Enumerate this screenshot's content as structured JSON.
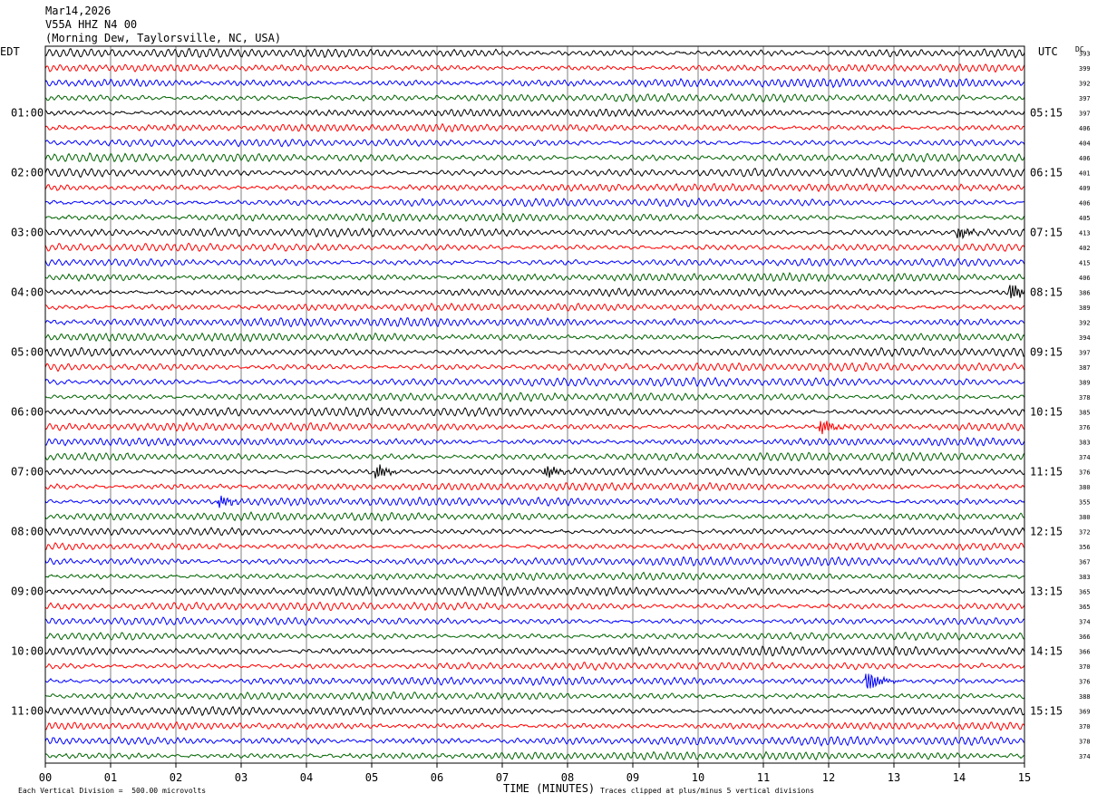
{
  "header": {
    "date": "Mar14,2026",
    "station": "V55A HHZ N4 00",
    "location": "(Morning Dew, Taylorsville, NC, USA)"
  },
  "left_tz": "EDT",
  "right_tz": "UTC",
  "dc_label": "DC",
  "footer": {
    "scale": "Each Vertical Division =  500.00 microvolts",
    "xlabel": "TIME (MINUTES)",
    "clip_note": "Traces clipped at plus/minus 5 vertical divisions"
  },
  "colors": {
    "trace_cycle": [
      "#000000",
      "#ff0000",
      "#0000ff",
      "#006400"
    ],
    "grid": "#000000"
  },
  "chart_data": {
    "type": "line",
    "title": "Mar14,2026  V55A HHZ N4 00  (Morning Dew, Taylorsville, NC, USA)",
    "xlabel": "TIME (MINUTES)",
    "xlim": [
      0,
      15
    ],
    "x_ticks": [
      "00",
      "01",
      "02",
      "03",
      "04",
      "05",
      "06",
      "07",
      "08",
      "09",
      "10",
      "11",
      "12",
      "13",
      "14",
      "15"
    ],
    "rows_per_hour": 4,
    "row_count": 48,
    "left_time_labels": [
      "01:00",
      "02:00",
      "03:00",
      "04:00",
      "05:00",
      "06:00",
      "07:00",
      "08:00",
      "09:00",
      "10:00",
      "11:00"
    ],
    "right_time_labels": [
      "05:15",
      "06:15",
      "07:15",
      "08:15",
      "09:15",
      "10:15",
      "11:15",
      "12:15",
      "13:15",
      "14:15",
      "15:15"
    ],
    "dc_offsets": [
      393,
      399,
      392,
      397,
      397,
      406,
      404,
      406,
      401,
      409,
      406,
      405,
      413,
      402,
      415,
      406,
      386,
      389,
      392,
      394,
      397,
      387,
      389,
      378,
      385,
      376,
      383,
      374,
      376,
      380,
      355,
      380,
      372,
      356,
      367,
      383,
      365,
      365,
      374,
      366,
      366,
      370,
      376,
      388,
      369,
      370,
      378,
      374
    ],
    "events": [
      {
        "row": 28,
        "minute": 5.1,
        "amplitude": 1.6
      },
      {
        "row": 28,
        "minute": 7.7,
        "amplitude": 1.3
      },
      {
        "row": 30,
        "minute": 2.7,
        "amplitude": 1.2
      },
      {
        "row": 42,
        "minute": 12.6,
        "amplitude": 2.6
      },
      {
        "row": 16,
        "minute": 14.8,
        "amplitude": 2.0
      },
      {
        "row": 25,
        "minute": 11.9,
        "amplitude": 1.7
      },
      {
        "row": 12,
        "minute": 14.0,
        "amplitude": 1.4
      }
    ]
  }
}
